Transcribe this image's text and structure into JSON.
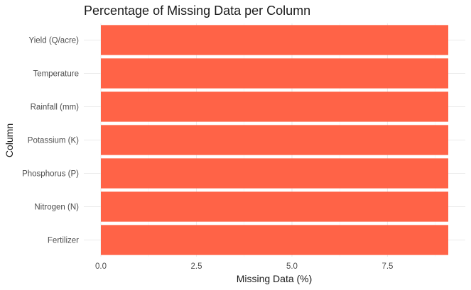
{
  "chart_data": {
    "type": "bar",
    "orientation": "horizontal",
    "title": "Percentage of Missing Data per Column",
    "xlabel": "Missing Data (%)",
    "ylabel": "Column",
    "categories": [
      "Fertilizer",
      "Nitrogen (N)",
      "Phosphorus (P)",
      "Potassium (K)",
      "Rainfall (mm)",
      "Temperature",
      "Yield (Q/acre)"
    ],
    "values": [
      9.09,
      9.09,
      9.09,
      9.09,
      9.09,
      9.09,
      9.09
    ],
    "xlim": [
      0,
      9.09
    ],
    "xticks": [
      0,
      2.5,
      5,
      7.5
    ],
    "xtick_labels": [
      "0.0",
      "2.5",
      "5.0",
      "7.5"
    ],
    "bar_color": "#ff6347",
    "grid": true,
    "legend": "none"
  }
}
